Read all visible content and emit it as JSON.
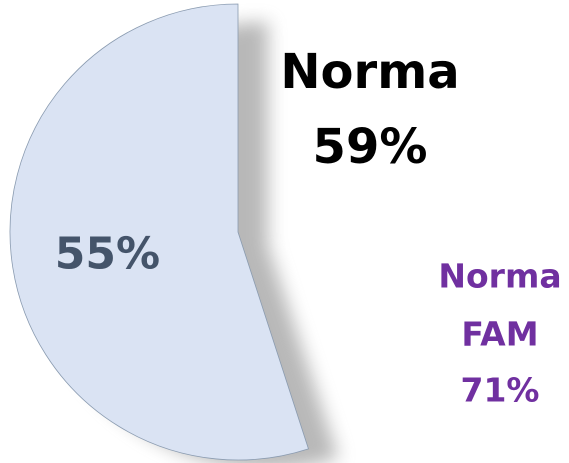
{
  "chart_data": {
    "type": "pie",
    "values": [
      55
    ],
    "value_labels": [
      "55%"
    ],
    "color": "#dae3f3",
    "annotations": [
      [
        "Norma",
        "59%"
      ],
      [
        "Norma",
        "FAM",
        "71%"
      ]
    ]
  }
}
